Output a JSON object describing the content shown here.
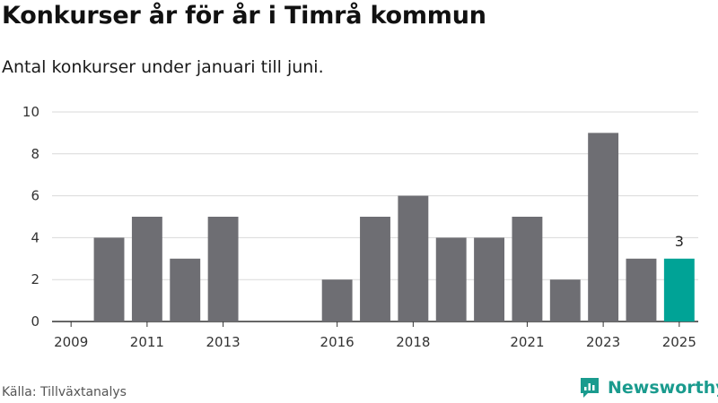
{
  "header": {
    "title": "Konkurser år för år i Timrå kommun",
    "subtitle": "Antal konkurser under januari till juni."
  },
  "footer": {
    "source": "Källa: Tillväxtanalys",
    "brand": "Newsworthy"
  },
  "colors": {
    "bar": "#6e6e73",
    "highlight": "#00a396",
    "grid": "#d9d9d9",
    "axis": "#333333",
    "brand": "#1a9b8e"
  },
  "chart_data": {
    "type": "bar",
    "categories": [
      "2009",
      "2010",
      "2011",
      "2012",
      "2013",
      "2014",
      "2015",
      "2016",
      "2017",
      "2018",
      "2019",
      "2020",
      "2021",
      "2022",
      "2023",
      "2024",
      "2025"
    ],
    "values": [
      0,
      4,
      5,
      3,
      5,
      0,
      0,
      2,
      5,
      6,
      4,
      4,
      5,
      2,
      9,
      3,
      3
    ],
    "highlight_category": "2025",
    "data_labels": [
      {
        "category": "2025",
        "text": "3"
      }
    ],
    "x_tick_labels": [
      "2009",
      "2011",
      "2013",
      "2016",
      "2018",
      "2021",
      "2023",
      "2025"
    ],
    "y_ticks": [
      0,
      2,
      4,
      6,
      8,
      10
    ],
    "ylim": [
      0,
      10
    ],
    "xlabel": "",
    "ylabel": "",
    "grid": true
  }
}
